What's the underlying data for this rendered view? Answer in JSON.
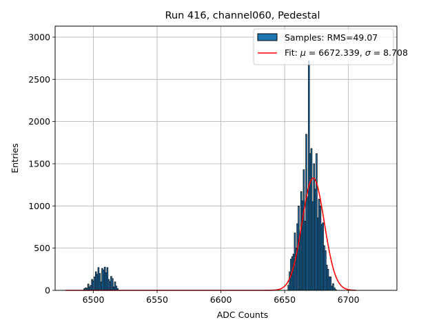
{
  "chart_data": {
    "type": "bar",
    "title": "Run 416, channel060, Pedestal",
    "xlabel": "ADC Counts",
    "ylabel": "Entries",
    "xlim": [
      6470,
      6738
    ],
    "ylim": [
      0,
      3130
    ],
    "xticks": [
      6500,
      6550,
      6600,
      6650,
      6700
    ],
    "yticks": [
      0,
      500,
      1000,
      1500,
      2000,
      2500,
      3000
    ],
    "grid": true,
    "legend": {
      "placement": "top-right",
      "entries": [
        {
          "label": "Samples: RMS=49.07",
          "kind": "patch",
          "color": "#1f77b4"
        },
        {
          "label": "Fit: μ = 6672.339, σ = 8.708",
          "kind": "line",
          "color": "#ff0000",
          "label_prefix": "Fit: ",
          "mu_symbol": "μ",
          "mu_text": " = 6672.339, ",
          "sigma_symbol": "σ",
          "sigma_text": " = 8.708"
        }
      ]
    },
    "histogram": {
      "name": "Samples: RMS=49.07",
      "color": "#1f77b4",
      "edgecolor": "#000000",
      "bins": [
        {
          "x": 6493,
          "y": 20
        },
        {
          "x": 6494,
          "y": 30
        },
        {
          "x": 6495,
          "y": 25
        },
        {
          "x": 6496,
          "y": 75
        },
        {
          "x": 6497,
          "y": 40
        },
        {
          "x": 6498,
          "y": 60
        },
        {
          "x": 6499,
          "y": 130
        },
        {
          "x": 6500,
          "y": 110
        },
        {
          "x": 6501,
          "y": 160
        },
        {
          "x": 6502,
          "y": 220
        },
        {
          "x": 6503,
          "y": 190
        },
        {
          "x": 6504,
          "y": 270
        },
        {
          "x": 6505,
          "y": 200
        },
        {
          "x": 6506,
          "y": 100
        },
        {
          "x": 6507,
          "y": 260
        },
        {
          "x": 6508,
          "y": 240
        },
        {
          "x": 6509,
          "y": 275
        },
        {
          "x": 6510,
          "y": 210
        },
        {
          "x": 6511,
          "y": 270
        },
        {
          "x": 6512,
          "y": 130
        },
        {
          "x": 6513,
          "y": 105
        },
        {
          "x": 6514,
          "y": 165
        },
        {
          "x": 6515,
          "y": 140
        },
        {
          "x": 6516,
          "y": 40
        },
        {
          "x": 6517,
          "y": 100
        },
        {
          "x": 6518,
          "y": 50
        },
        {
          "x": 6519,
          "y": 20
        },
        {
          "x": 6653,
          "y": 60
        },
        {
          "x": 6654,
          "y": 220
        },
        {
          "x": 6655,
          "y": 370
        },
        {
          "x": 6656,
          "y": 400
        },
        {
          "x": 6657,
          "y": 430
        },
        {
          "x": 6658,
          "y": 680
        },
        {
          "x": 6659,
          "y": 500
        },
        {
          "x": 6660,
          "y": 790
        },
        {
          "x": 6661,
          "y": 1000
        },
        {
          "x": 6662,
          "y": 650
        },
        {
          "x": 6663,
          "y": 1170
        },
        {
          "x": 6664,
          "y": 1060
        },
        {
          "x": 6665,
          "y": 1430
        },
        {
          "x": 6666,
          "y": 820
        },
        {
          "x": 6667,
          "y": 1850
        },
        {
          "x": 6668,
          "y": 1110
        },
        {
          "x": 6669,
          "y": 2720
        },
        {
          "x": 6670,
          "y": 1620
        },
        {
          "x": 6671,
          "y": 1680
        },
        {
          "x": 6672,
          "y": 1050
        },
        {
          "x": 6673,
          "y": 1500
        },
        {
          "x": 6674,
          "y": 1200
        },
        {
          "x": 6675,
          "y": 1620
        },
        {
          "x": 6676,
          "y": 860
        },
        {
          "x": 6677,
          "y": 1080
        },
        {
          "x": 6678,
          "y": 1000
        },
        {
          "x": 6679,
          "y": 780
        },
        {
          "x": 6680,
          "y": 800
        },
        {
          "x": 6681,
          "y": 530
        },
        {
          "x": 6682,
          "y": 470
        },
        {
          "x": 6683,
          "y": 300
        },
        {
          "x": 6684,
          "y": 250
        },
        {
          "x": 6685,
          "y": 160
        },
        {
          "x": 6686,
          "y": 160
        },
        {
          "x": 6687,
          "y": 50
        },
        {
          "x": 6688,
          "y": 80
        },
        {
          "x": 6689,
          "y": 30
        },
        {
          "x": 6690,
          "y": 10
        }
      ]
    },
    "fit": {
      "name": "Fit: μ = 6672.339, σ = 8.708",
      "color": "#ff0000",
      "mu": 6672.339,
      "sigma": 8.708,
      "amplitude": 1330,
      "x_range": [
        6478,
        6706
      ]
    }
  }
}
